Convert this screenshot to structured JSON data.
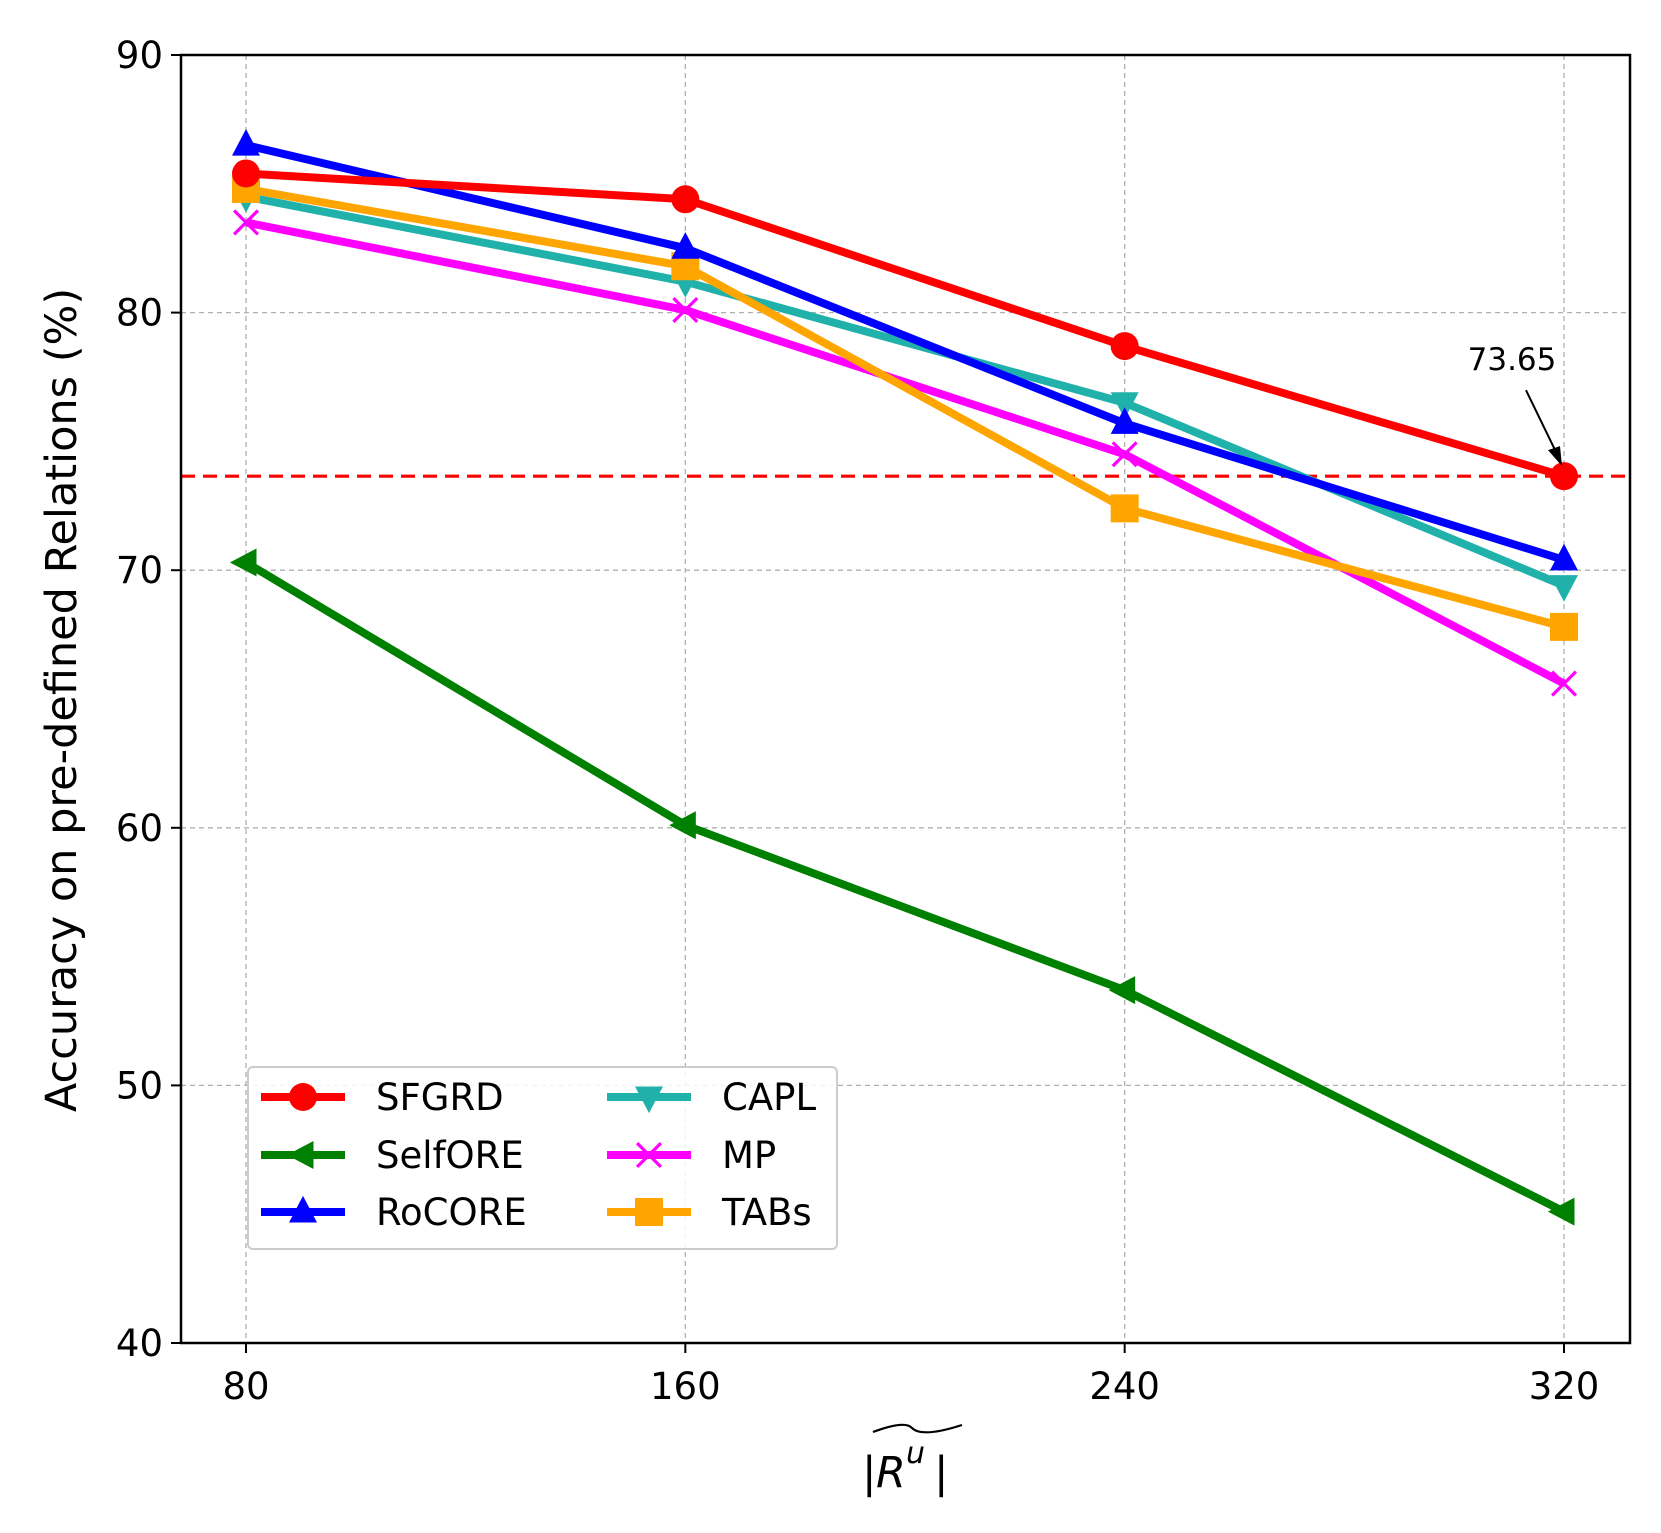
{
  "chart_data": {
    "type": "line",
    "title": "",
    "xlabel": "|R^u|",
    "ylabel": "Accuracy on pre-defined Relations (%)",
    "x": [
      80,
      160,
      240,
      320
    ],
    "x_tick_labels": [
      "80",
      "160",
      "240",
      "320"
    ],
    "ylim": [
      40,
      90
    ],
    "y_ticks": [
      40,
      50,
      60,
      70,
      80,
      90
    ],
    "y_tick_labels": [
      "40",
      "50",
      "60",
      "70",
      "80",
      "90"
    ],
    "grid": true,
    "legend_position": "lower-left",
    "series": [
      {
        "name": "SFGRD",
        "color": "#ff0000",
        "marker": "circle",
        "values": [
          85.4,
          84.4,
          78.7,
          73.65
        ]
      },
      {
        "name": "SelfORE",
        "color": "#008000",
        "marker": "triangle-left",
        "values": [
          70.3,
          60.1,
          53.7,
          45.1
        ]
      },
      {
        "name": "RoCORE",
        "color": "#0000ff",
        "marker": "triangle-up",
        "values": [
          86.5,
          82.5,
          75.7,
          70.4
        ]
      },
      {
        "name": "CAPL",
        "color": "#20b2aa",
        "marker": "triangle-down",
        "values": [
          84.5,
          81.2,
          76.5,
          69.4
        ]
      },
      {
        "name": "MP",
        "color": "#ff00ff",
        "marker": "x",
        "values": [
          83.5,
          80.1,
          74.5,
          65.6
        ]
      },
      {
        "name": "TABs",
        "color": "#ffa500",
        "marker": "square",
        "values": [
          84.8,
          81.8,
          72.4,
          67.8
        ]
      }
    ],
    "reference_line": {
      "value": 73.65,
      "color": "#ff0000",
      "style": "dashed"
    },
    "annotation": {
      "text": "73.65",
      "x": 320,
      "y": 73.65
    }
  }
}
